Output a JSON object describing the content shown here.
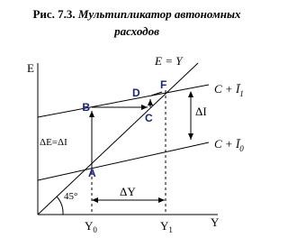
{
  "header": {
    "fig": "Рис. 7.3.",
    "title_line1": "Мультипликатор автономных",
    "title_line2": "расходов"
  },
  "axes": {
    "y_label": "E",
    "x_label": "Y"
  },
  "lines": {
    "diagonal": "E = Y",
    "upper": {
      "base": "C + Ī",
      "sub": "1"
    },
    "lower": {
      "base": "C + Ī",
      "sub": "0"
    }
  },
  "points": {
    "A": "A",
    "B": "B",
    "C": "C",
    "D": "D",
    "F": "F"
  },
  "annotations": {
    "delta_i": "ΔI",
    "delta_e": "ΔE=ΔI",
    "angle": "45°",
    "delta_y": "ΔY"
  },
  "x_ticks": [
    {
      "base": "Y",
      "sub": "0"
    },
    {
      "base": "Y",
      "sub": "1"
    }
  ]
}
